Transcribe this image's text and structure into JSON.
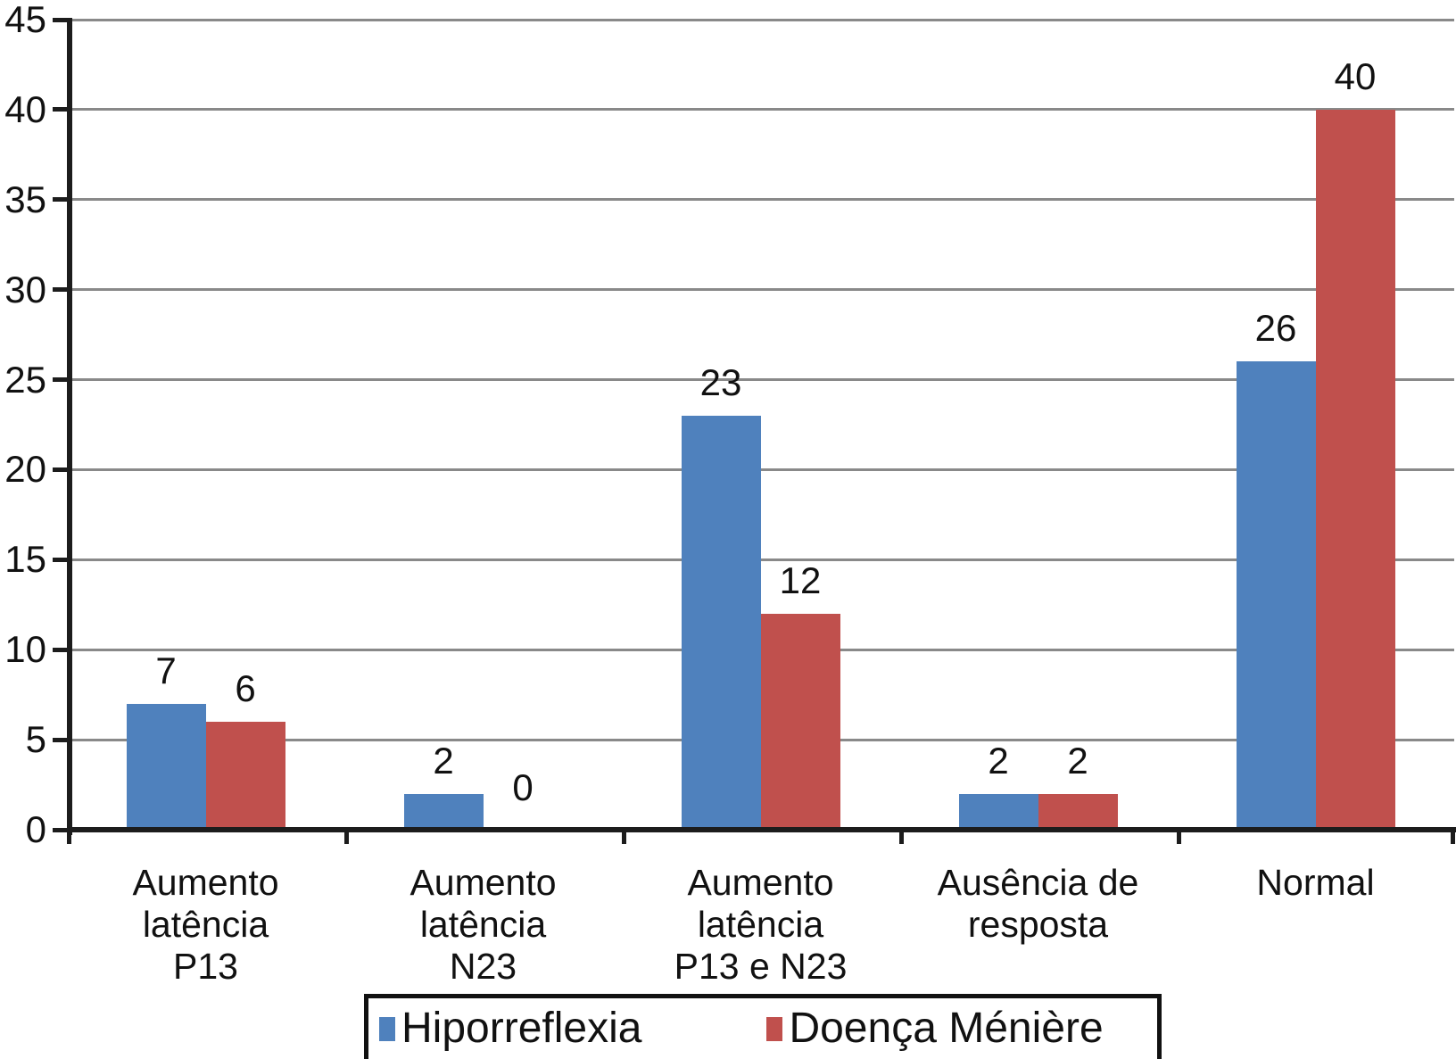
{
  "chart_data": {
    "type": "bar",
    "title": "",
    "xlabel": "",
    "ylabel": "",
    "categories": [
      "Aumento latência P13",
      "Aumento latência N23",
      "Aumento latência P13 e N23",
      "Ausência de resposta",
      "Normal"
    ],
    "category_lines": [
      [
        "Aumento latência",
        "P13"
      ],
      [
        "Aumento latência",
        "N23"
      ],
      [
        "Aumento latência",
        "P13 e N23"
      ],
      [
        "Ausência de",
        "resposta"
      ],
      [
        "Normal"
      ]
    ],
    "series": [
      {
        "name": "Hiporreflexia",
        "color": "#4f81bd",
        "values": [
          7,
          2,
          23,
          2,
          26
        ]
      },
      {
        "name": "Doença Ménière",
        "color": "#c0504d",
        "values": [
          6,
          0,
          12,
          2,
          40
        ]
      }
    ],
    "ylim": [
      0,
      45
    ],
    "yticks": [
      0,
      5,
      10,
      15,
      20,
      25,
      30,
      35,
      40,
      45
    ],
    "grid": true,
    "data_labels": true,
    "legend_position": "bottom"
  },
  "colors": {
    "axis": "#1c1c1c",
    "gridline": "#898989",
    "text": "#111111",
    "background": "#ffffff",
    "series_blue": "#4f81bd",
    "series_red": "#c0504d",
    "legend_border": "#111111"
  }
}
